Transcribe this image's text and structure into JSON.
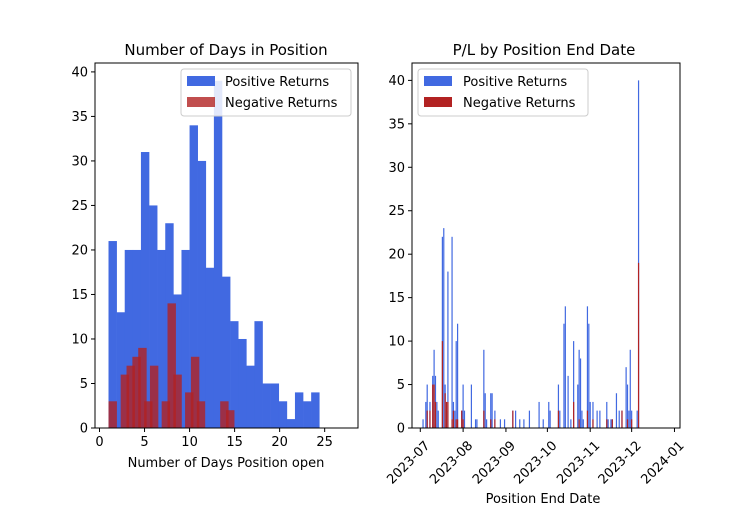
{
  "chart_data": [
    {
      "type": "bar",
      "title": "Number of Days in Position",
      "xlabel": "Number of Days Position open",
      "ylabel": "",
      "xlim": [
        -0.5,
        28.7
      ],
      "ylim": [
        0,
        41
      ],
      "xticks": [
        0,
        5,
        10,
        15,
        20,
        25
      ],
      "yticks": [
        0,
        5,
        10,
        15,
        20,
        25,
        30,
        35,
        40
      ],
      "legend_position": "top-right",
      "bin_width": 0.9,
      "series": [
        {
          "name": "Positive Returns",
          "color": "#4169e1",
          "bins": [
            {
              "x": 1.0,
              "value": 21
            },
            {
              "x": 1.9,
              "value": 13
            },
            {
              "x": 2.8,
              "value": 20
            },
            {
              "x": 3.7,
              "value": 20
            },
            {
              "x": 4.6,
              "value": 31
            },
            {
              "x": 5.5,
              "value": 25
            },
            {
              "x": 6.4,
              "value": 20
            },
            {
              "x": 7.3,
              "value": 23
            },
            {
              "x": 8.2,
              "value": 15
            },
            {
              "x": 9.1,
              "value": 20
            },
            {
              "x": 10.0,
              "value": 34
            },
            {
              "x": 10.9,
              "value": 30
            },
            {
              "x": 11.8,
              "value": 18
            },
            {
              "x": 12.7,
              "value": 39
            },
            {
              "x": 13.6,
              "value": 17
            },
            {
              "x": 14.5,
              "value": 12
            },
            {
              "x": 15.4,
              "value": 10
            },
            {
              "x": 16.3,
              "value": 7
            },
            {
              "x": 17.2,
              "value": 12
            },
            {
              "x": 18.1,
              "value": 5
            },
            {
              "x": 19.0,
              "value": 5
            },
            {
              "x": 19.9,
              "value": 3
            },
            {
              "x": 20.8,
              "value": 1
            },
            {
              "x": 21.7,
              "value": 4
            },
            {
              "x": 22.6,
              "value": 3
            },
            {
              "x": 23.5,
              "value": 4
            }
          ]
        },
        {
          "name": "Negative Returns",
          "color": "#b22222",
          "opacity": 0.8,
          "bins": [
            {
              "x": 1.0,
              "value": 3
            },
            {
              "x": 2.35,
              "value": 6
            },
            {
              "x": 3.0,
              "value": 7
            },
            {
              "x": 3.65,
              "value": 8
            },
            {
              "x": 4.3,
              "value": 9
            },
            {
              "x": 4.95,
              "value": 3
            },
            {
              "x": 5.6,
              "value": 7
            },
            {
              "x": 6.9,
              "value": 3
            },
            {
              "x": 7.55,
              "value": 14
            },
            {
              "x": 8.2,
              "value": 6
            },
            {
              "x": 9.5,
              "value": 4
            },
            {
              "x": 10.15,
              "value": 8
            },
            {
              "x": 10.8,
              "value": 3
            },
            {
              "x": 13.4,
              "value": 3
            },
            {
              "x": 14.05,
              "value": 2
            }
          ]
        }
      ]
    },
    {
      "type": "bar",
      "title": "P/L by Position End Date",
      "xlabel": "Position End Date",
      "ylabel": "",
      "xlim": [
        "2023-06-25",
        "2024-01-05"
      ],
      "ylim": [
        0,
        42
      ],
      "xticks": [
        "2023-07",
        "2023-08",
        "2023-09",
        "2023-10",
        "2023-11",
        "2023-12",
        "2024-01"
      ],
      "yticks": [
        0,
        5,
        10,
        15,
        20,
        25,
        30,
        35,
        40
      ],
      "legend_position": "top-left",
      "series": [
        {
          "name": "Positive Returns",
          "color": "#4169e1",
          "points": [
            {
              "date": "2023-07-03",
              "value": 1
            },
            {
              "date": "2023-07-05",
              "value": 3
            },
            {
              "date": "2023-07-06",
              "value": 5
            },
            {
              "date": "2023-07-08",
              "value": 3
            },
            {
              "date": "2023-07-10",
              "value": 6
            },
            {
              "date": "2023-07-11",
              "value": 9
            },
            {
              "date": "2023-07-12",
              "value": 6
            },
            {
              "date": "2023-07-13",
              "value": 3
            },
            {
              "date": "2023-07-14",
              "value": 2
            },
            {
              "date": "2023-07-17",
              "value": 22
            },
            {
              "date": "2023-07-18",
              "value": 23
            },
            {
              "date": "2023-07-19",
              "value": 5
            },
            {
              "date": "2023-07-20",
              "value": 2
            },
            {
              "date": "2023-07-21",
              "value": 18
            },
            {
              "date": "2023-07-24",
              "value": 22
            },
            {
              "date": "2023-07-25",
              "value": 3
            },
            {
              "date": "2023-07-26",
              "value": 2
            },
            {
              "date": "2023-07-27",
              "value": 10
            },
            {
              "date": "2023-07-28",
              "value": 12
            },
            {
              "date": "2023-07-31",
              "value": 2
            },
            {
              "date": "2023-08-01",
              "value": 5
            },
            {
              "date": "2023-08-02",
              "value": 2
            },
            {
              "date": "2023-08-07",
              "value": 5
            },
            {
              "date": "2023-08-10",
              "value": 1
            },
            {
              "date": "2023-08-11",
              "value": 1
            },
            {
              "date": "2023-08-16",
              "value": 9
            },
            {
              "date": "2023-08-17",
              "value": 4
            },
            {
              "date": "2023-08-18",
              "value": 1
            },
            {
              "date": "2023-08-21",
              "value": 4
            },
            {
              "date": "2023-08-22",
              "value": 4
            },
            {
              "date": "2023-08-24",
              "value": 2
            },
            {
              "date": "2023-08-28",
              "value": 1
            },
            {
              "date": "2023-08-31",
              "value": 1
            },
            {
              "date": "2023-09-06",
              "value": 2
            },
            {
              "date": "2023-09-08",
              "value": 2
            },
            {
              "date": "2023-09-11",
              "value": 1
            },
            {
              "date": "2023-09-14",
              "value": 1
            },
            {
              "date": "2023-09-18",
              "value": 2
            },
            {
              "date": "2023-09-25",
              "value": 3
            },
            {
              "date": "2023-09-28",
              "value": 1
            },
            {
              "date": "2023-10-02",
              "value": 3
            },
            {
              "date": "2023-10-03",
              "value": 2
            },
            {
              "date": "2023-10-09",
              "value": 5
            },
            {
              "date": "2023-10-10",
              "value": 2
            },
            {
              "date": "2023-10-13",
              "value": 12
            },
            {
              "date": "2023-10-14",
              "value": 14
            },
            {
              "date": "2023-10-16",
              "value": 6
            },
            {
              "date": "2023-10-18",
              "value": 1
            },
            {
              "date": "2023-10-20",
              "value": 10
            },
            {
              "date": "2023-10-23",
              "value": 5
            },
            {
              "date": "2023-10-24",
              "value": 9
            },
            {
              "date": "2023-10-25",
              "value": 8
            },
            {
              "date": "2023-10-26",
              "value": 2
            },
            {
              "date": "2023-10-27",
              "value": 1
            },
            {
              "date": "2023-10-30",
              "value": 14
            },
            {
              "date": "2023-10-31",
              "value": 12
            },
            {
              "date": "2023-11-01",
              "value": 3
            },
            {
              "date": "2023-11-03",
              "value": 3
            },
            {
              "date": "2023-11-06",
              "value": 2
            },
            {
              "date": "2023-11-08",
              "value": 2
            },
            {
              "date": "2023-11-13",
              "value": 3
            },
            {
              "date": "2023-11-14",
              "value": 1
            },
            {
              "date": "2023-11-16",
              "value": 1
            },
            {
              "date": "2023-11-17",
              "value": 1
            },
            {
              "date": "2023-11-20",
              "value": 4
            },
            {
              "date": "2023-11-22",
              "value": 2
            },
            {
              "date": "2023-11-24",
              "value": 2
            },
            {
              "date": "2023-11-27",
              "value": 7
            },
            {
              "date": "2023-11-28",
              "value": 5
            },
            {
              "date": "2023-11-29",
              "value": 2
            },
            {
              "date": "2023-11-30",
              "value": 9
            },
            {
              "date": "2023-12-01",
              "value": 2
            },
            {
              "date": "2023-12-05",
              "value": 2
            },
            {
              "date": "2023-12-06",
              "value": 40
            }
          ]
        },
        {
          "name": "Negative Returns",
          "color": "#b22222",
          "points": [
            {
              "date": "2023-07-06",
              "value": 2
            },
            {
              "date": "2023-07-08",
              "value": 2
            },
            {
              "date": "2023-07-10",
              "value": 5
            },
            {
              "date": "2023-07-11",
              "value": 5
            },
            {
              "date": "2023-07-12",
              "value": 3
            },
            {
              "date": "2023-07-17",
              "value": 10
            },
            {
              "date": "2023-07-19",
              "value": 4
            },
            {
              "date": "2023-07-20",
              "value": 3
            },
            {
              "date": "2023-07-21",
              "value": 3
            },
            {
              "date": "2023-07-24",
              "value": 1
            },
            {
              "date": "2023-07-25",
              "value": 2
            },
            {
              "date": "2023-07-27",
              "value": 1
            },
            {
              "date": "2023-07-28",
              "value": 1
            },
            {
              "date": "2023-07-31",
              "value": 2
            },
            {
              "date": "2023-08-01",
              "value": 1
            },
            {
              "date": "2023-08-16",
              "value": 2
            },
            {
              "date": "2023-08-21",
              "value": 1
            },
            {
              "date": "2023-08-24",
              "value": 1
            },
            {
              "date": "2023-09-06",
              "value": 2
            },
            {
              "date": "2023-10-09",
              "value": 2
            },
            {
              "date": "2023-10-20",
              "value": 3
            },
            {
              "date": "2023-10-24",
              "value": 1
            },
            {
              "date": "2023-10-30",
              "value": 2
            },
            {
              "date": "2023-11-03",
              "value": 1
            },
            {
              "date": "2023-11-13",
              "value": 1
            },
            {
              "date": "2023-11-17",
              "value": 1
            },
            {
              "date": "2023-11-24",
              "value": 2
            },
            {
              "date": "2023-11-28",
              "value": 1
            },
            {
              "date": "2023-12-01",
              "value": 1
            },
            {
              "date": "2023-12-06",
              "value": 19
            }
          ]
        }
      ]
    }
  ]
}
